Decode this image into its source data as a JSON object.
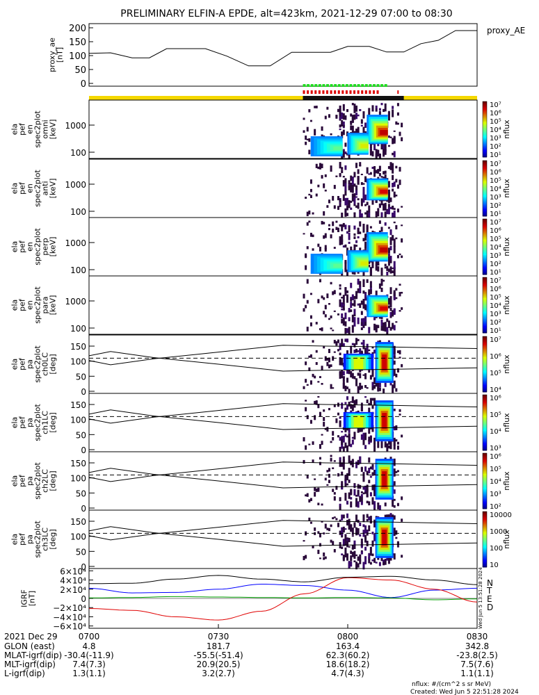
{
  "title": "PRELIMINARY ELFIN-A EPDE, alt=423km, 2021-12-29 07:00 to 08:30",
  "colors": {
    "quality_bar": "#f5d800",
    "quality_bar_dark": "#111111",
    "flag_green": "#22dd22",
    "flag_red": "#dd0000",
    "bn": "#0000ff",
    "be": "#00a000",
    "bd": "#e00000",
    "bt": "#000000"
  },
  "chart_data": [
    {
      "type": "line",
      "panel": "proxy_ae",
      "ylabel_lines": [
        "proxy_ae",
        "[nT]"
      ],
      "legend": "proxy_AE",
      "ylim": [
        0,
        210
      ],
      "yticks": [
        "200",
        "150",
        "100",
        "50",
        "0"
      ],
      "ytick_values": [
        200,
        150,
        100,
        50,
        0
      ],
      "x_minutes": [
        0,
        5,
        10,
        14,
        18,
        22,
        27,
        32,
        37,
        42,
        47,
        52,
        56,
        60,
        65,
        69,
        73,
        77,
        81,
        85,
        90
      ],
      "values": [
        108,
        110,
        92,
        92,
        125,
        125,
        125,
        98,
        63,
        63,
        112,
        112,
        112,
        133,
        133,
        113,
        113,
        143,
        155,
        190,
        190
      ]
    },
    {
      "type": "heatmap",
      "panel": "omni",
      "ylabel_lines": [
        "ela",
        "pef",
        "en",
        "spec2plot",
        "omni",
        "[keV]"
      ],
      "yscale": "log",
      "yticks": [
        "1000",
        "100"
      ],
      "colorbar_label": "nflux",
      "colorbar_ticks": [
        "10⁷",
        "10⁶",
        "10⁵",
        "10⁴",
        "10³",
        "10²",
        "10¹"
      ]
    },
    {
      "type": "heatmap",
      "panel": "anti",
      "ylabel_lines": [
        "ela",
        "pef",
        "en",
        "spec2plot",
        "anti",
        "[keV]"
      ],
      "yscale": "log",
      "yticks": [
        "1000",
        "100"
      ],
      "colorbar_label": "nflux",
      "colorbar_ticks": [
        "10⁷",
        "10⁶",
        "10⁵",
        "10⁴",
        "10³",
        "10²",
        "10¹"
      ]
    },
    {
      "type": "heatmap",
      "panel": "perp",
      "ylabel_lines": [
        "ela",
        "pef",
        "en",
        "spec2plot",
        "perp",
        "[keV]"
      ],
      "yscale": "log",
      "yticks": [
        "1000",
        "100"
      ],
      "colorbar_label": "nflux",
      "colorbar_ticks": [
        "10⁷",
        "10⁶",
        "10⁵",
        "10⁴",
        "10³",
        "10²",
        "10¹"
      ]
    },
    {
      "type": "heatmap",
      "panel": "para",
      "ylabel_lines": [
        "ela",
        "pef",
        "en",
        "spec2plot",
        "para",
        "[keV]"
      ],
      "yscale": "log",
      "yticks": [
        "1000",
        "100"
      ],
      "colorbar_label": "nflux",
      "colorbar_ticks": [
        "10⁷",
        "10⁶",
        "10⁵",
        "10⁴",
        "10³",
        "10²",
        "10¹"
      ]
    },
    {
      "type": "heatmap",
      "panel": "ch0LC",
      "ylabel_lines": [
        "ela",
        "pef",
        "pa",
        "spec2plot",
        "ch0LC",
        "[deg]"
      ],
      "yticks": [
        "150",
        "100",
        "50",
        "0"
      ],
      "colorbar_label": "nflux",
      "colorbar_ticks": [
        "10⁷",
        "10⁶",
        "10⁵",
        "10⁴"
      ]
    },
    {
      "type": "heatmap",
      "panel": "ch1LC",
      "ylabel_lines": [
        "ela",
        "pef",
        "pa",
        "spec2plot",
        "ch1LC",
        "[deg]"
      ],
      "yticks": [
        "150",
        "100",
        "50",
        "0"
      ],
      "colorbar_label": "nflux",
      "colorbar_ticks": [
        "10⁶",
        "10⁵",
        "10⁴",
        "10³"
      ]
    },
    {
      "type": "heatmap",
      "panel": "ch2LC",
      "ylabel_lines": [
        "ela",
        "pef",
        "pa",
        "spec2plot",
        "ch2LC",
        "[deg]"
      ],
      "yticks": [
        "150",
        "100",
        "50",
        "0"
      ],
      "colorbar_label": "nflux",
      "colorbar_ticks": [
        "10⁶",
        "10⁵",
        "10⁴",
        "10³",
        "10²"
      ]
    },
    {
      "type": "heatmap",
      "panel": "ch3LC",
      "ylabel_lines": [
        "ela",
        "pef",
        "pa",
        "spec2plot",
        "ch3LC",
        "[deg]"
      ],
      "yticks": [
        "150",
        "100",
        "50",
        "0"
      ],
      "colorbar_label": "nflux",
      "colorbar_ticks": [
        "10000",
        "1000",
        "100",
        "10"
      ]
    },
    {
      "type": "line",
      "panel": "IGRF",
      "ylabel_lines": [
        "IGRF",
        "[nT]"
      ],
      "yticks": [
        "6×10⁴",
        "4×10⁴",
        "2×10⁴",
        "0",
        "−2×10⁴",
        "−4×10⁴",
        "−6×10⁴"
      ],
      "ytick_values": [
        60000,
        40000,
        20000,
        0,
        -20000,
        -40000,
        -60000
      ],
      "legend": [
        "N",
        "E",
        "D",
        "T"
      ],
      "side_note": "Wed Jun  5 13:51:28 2024",
      "x_minutes": [
        0,
        10,
        20,
        30,
        40,
        50,
        60,
        70,
        80,
        90
      ],
      "series": [
        {
          "name": "N",
          "values": [
            22000,
            12000,
            13000,
            20000,
            31000,
            28000,
            18000,
            2000,
            18000,
            22000
          ]
        },
        {
          "name": "E",
          "values": [
            1000,
            2000,
            4000,
            3000,
            2000,
            1000,
            2000,
            1000,
            -3000,
            -1000
          ]
        },
        {
          "name": "D",
          "values": [
            -22000,
            -26000,
            -40000,
            -47000,
            -28000,
            10000,
            45000,
            40000,
            20000,
            -8000
          ]
        },
        {
          "name": "T",
          "values": [
            32000,
            33000,
            42000,
            50000,
            42000,
            36000,
            46000,
            48000,
            40000,
            30000
          ]
        }
      ]
    }
  ],
  "xaxis": {
    "ticks": [
      "0700",
      "0730",
      "0800",
      "0830"
    ],
    "rows": [
      {
        "label": "2021 Dec 29",
        "values": [
          "0700",
          "0730",
          "0800",
          "0830"
        ]
      },
      {
        "label": "GLON (east)",
        "values": [
          "4.8",
          "181.7",
          "163.4",
          "342.8"
        ]
      },
      {
        "label": "MLAT-igrf(dip)",
        "values": [
          "-30.4(-11.9)",
          "-55.5(-51.4)",
          "62.3(60.2)",
          "-23.8(2.5)"
        ]
      },
      {
        "label": "MLT-igrf(dip)",
        "values": [
          "7.4(7.3)",
          "20.9(20.5)",
          "18.6(18.2)",
          "7.5(7.6)"
        ]
      },
      {
        "label": "L-igrf(dip)",
        "values": [
          "1.3(1.1)",
          "3.2(2.7)",
          "4.7(4.3)",
          "1.1(1.1)"
        ]
      }
    ]
  },
  "footer": {
    "units": "nflux: #/(cm^2 s sr MeV)",
    "created": "Created: Wed Jun  5 22:51:28 2024"
  }
}
